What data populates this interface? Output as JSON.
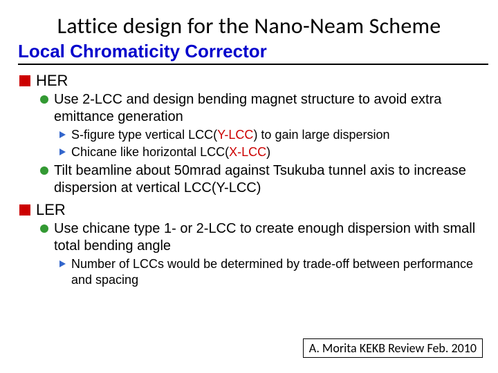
{
  "title": "Lattice design for the Nano-Neam Scheme",
  "section": "Local Chromaticity Corrector",
  "colors": {
    "section_title": "#0000cc",
    "square_bullet": "#cc0000",
    "circle_bullet": "#339933",
    "triangle_bullet": "#3366cc",
    "highlight_y": "#cc0000",
    "highlight_x": "#cc0000"
  },
  "her": {
    "label": "HER",
    "items": [
      {
        "text": "Use 2-LCC and design bending magnet structure to avoid extra emittance generation",
        "sub": [
          {
            "pre": "S-figure type vertical LCC(",
            "hl": "Y-LCC",
            "post": ") to gain large dispersion"
          },
          {
            "pre": "Chicane like horizontal LCC(",
            "hl": "X-LCC",
            "post": ")"
          }
        ]
      },
      {
        "text": "Tilt beamline about 50mrad against Tsukuba tunnel axis to increase dispersion at vertical LCC(Y-LCC)"
      }
    ]
  },
  "ler": {
    "label": "LER",
    "items": [
      {
        "text": "Use chicane type 1- or 2-LCC to create enough dispersion with small total bending angle",
        "sub": [
          {
            "pre": "Number of LCCs would be determined by trade-off between performance and spacing",
            "hl": "",
            "post": ""
          }
        ]
      }
    ]
  },
  "credit": "A. Morita KEKB Review Feb. 2010"
}
